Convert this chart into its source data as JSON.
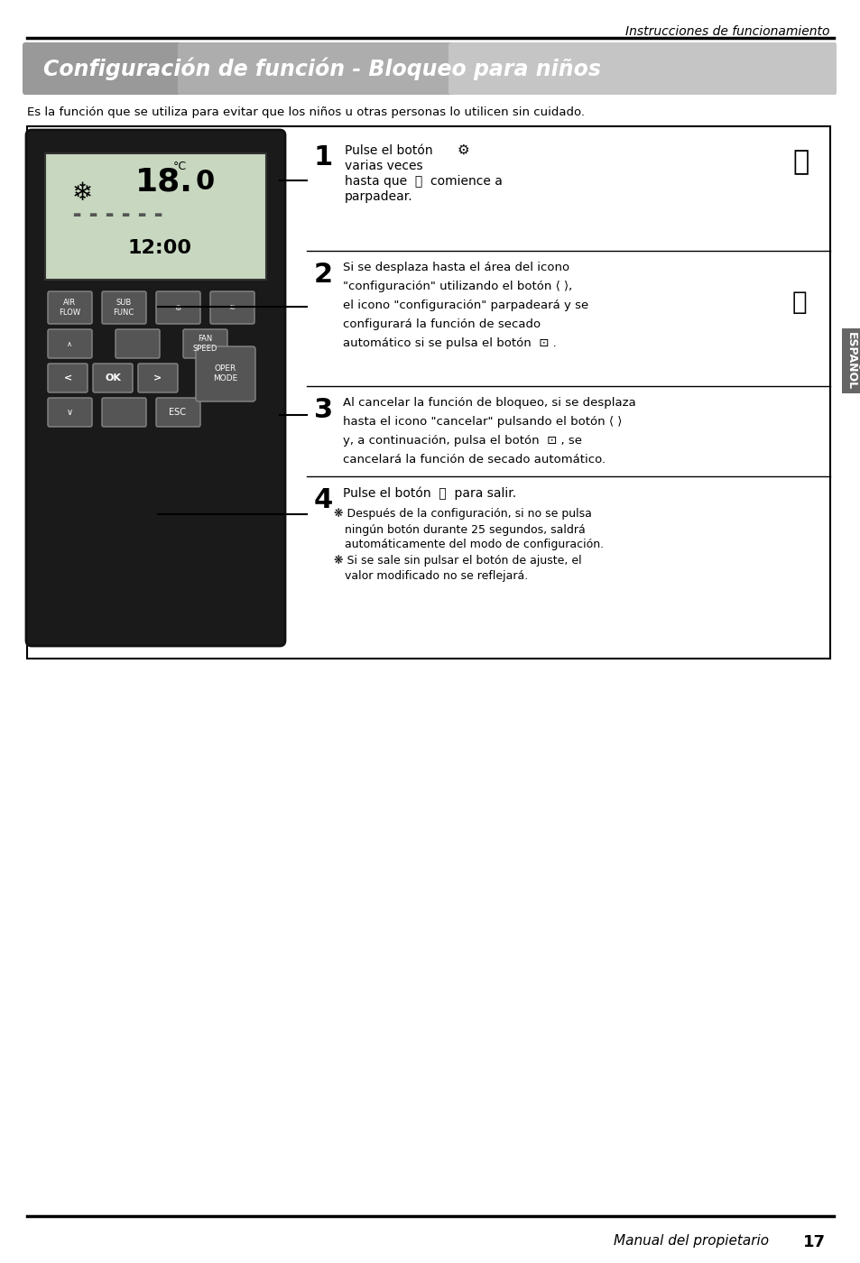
{
  "page_bg": "#ffffff",
  "top_header": "Instrucciones de funcionamiento",
  "title": "Configuración de función - Bloqueo para niños",
  "title_bg_left": "#888888",
  "title_bg_right": "#cccccc",
  "intro_text": "Es la función que se utiliza para evitar que los niños u otras personas lo utilicen sin cuidado.",
  "step1_num": "1",
  "step1_text": "Pulse el botón ⓢ varias veces\nhasta que 🔒 comience a\nparpadear.",
  "step2_num": "2",
  "step2_text": "Si se desplaza hasta el área del icono\n\"configuración\" utilizando el botón ❮ ❯,\nel icono \"configuración\" parpadeárá y se\nconfigurará la función de secado\nautomático si se pulsa el botón Ⓞ⃣ .",
  "step3_num": "3",
  "step3_text": "Al cancelar la función de bloqueo, si se desplaza\nhasta el icono \"cancelar\" pulsando el botón ❮ ❯\ny, a continuación, pulsa el botón Ⓞ⃣ , se\ncancelará la función de secado automático.",
  "step4_num": "4",
  "step4_text": "Pulse el botón ⎋ para salir.",
  "step4_sub1": "✱ Después de la configuración, si no se pulsa\n  ningun botón durante 25 segundos, saldrá\n  automáticamente del modo de configuración.",
  "step4_sub2": "✱ Si se sale sin pulsar el botón de ajuste, el\n  valor modificado no se reflejará.",
  "side_label": "ESPAÑOL",
  "footer_text": "Manual del propietario",
  "footer_page": "17",
  "box_border": "#000000",
  "text_color": "#000000",
  "step_num_color": "#000000"
}
